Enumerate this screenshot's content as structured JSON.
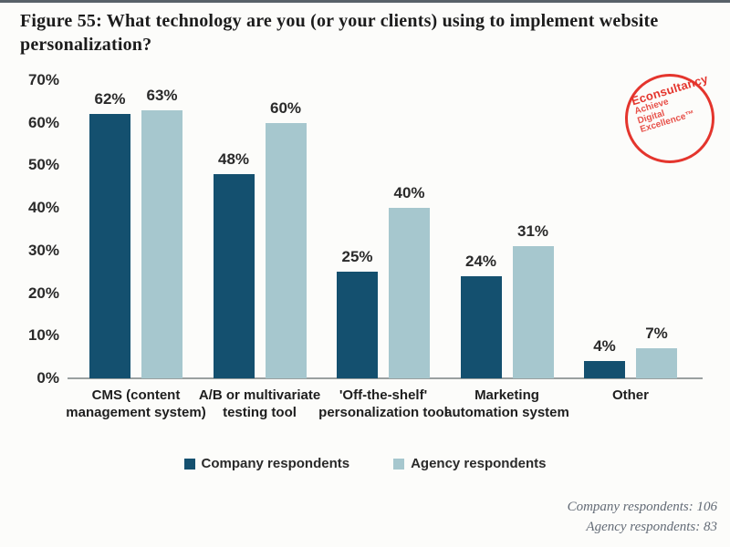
{
  "title": "Figure 55: What technology are you (or your clients) using to implement website personalization?",
  "logo": {
    "brand": "Econsultancy",
    "tagline_lines": [
      "Achieve",
      "Digital",
      "Excellence™"
    ],
    "color": "#e4352d"
  },
  "chart_data": {
    "type": "bar",
    "categories": [
      "CMS (content management system)",
      "A/B or multivariate testing tool",
      "'Off-the-shelf' personalization tool",
      "Marketing automation system",
      "Other"
    ],
    "series": [
      {
        "name": "Company respondents",
        "color": "#14506f",
        "values": [
          62,
          48,
          25,
          24,
          4
        ]
      },
      {
        "name": "Agency respondents",
        "color": "#a6c7ce",
        "values": [
          63,
          60,
          40,
          31,
          7
        ]
      }
    ],
    "title": "",
    "xlabel": "",
    "ylabel": "",
    "ylim": [
      0,
      70
    ],
    "ytick_step": 10,
    "ytick_suffix": "%",
    "value_label_suffix": "%",
    "grid": false,
    "legend_position": "bottom"
  },
  "footer": {
    "lines": [
      "Company respondents: 106",
      "Agency respondents: 83"
    ]
  }
}
